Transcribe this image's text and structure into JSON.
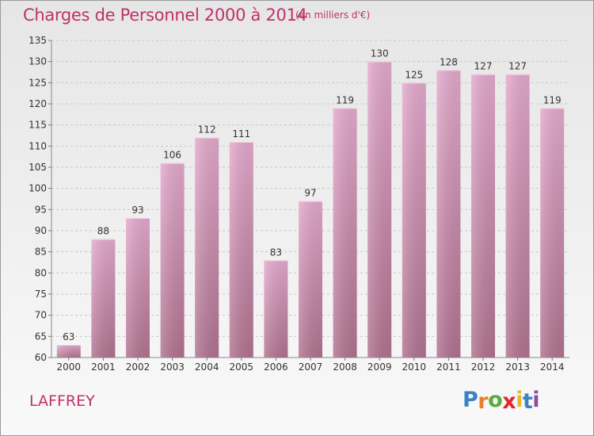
{
  "chart_data": {
    "type": "bar",
    "title": "Charges de Personnel 2000 à 2014",
    "subtitle": "(en milliers d'€)",
    "categories": [
      "2000",
      "2001",
      "2002",
      "2003",
      "2004",
      "2005",
      "2006",
      "2007",
      "2008",
      "2009",
      "2010",
      "2011",
      "2012",
      "2013",
      "2014"
    ],
    "values": [
      63,
      88,
      93,
      106,
      112,
      111,
      83,
      97,
      119,
      130,
      125,
      128,
      127,
      127,
      119
    ],
    "ylim": [
      60,
      135
    ],
    "yticks": [
      60,
      65,
      70,
      75,
      80,
      85,
      90,
      95,
      100,
      105,
      110,
      115,
      120,
      125,
      130,
      135
    ],
    "grid": "horizontal dashed",
    "bar_color_top": "#e3a9cc",
    "bar_color_bottom": "#b0728f"
  },
  "commune": "LAFFREY",
  "logo": {
    "letters": [
      "P",
      "r",
      "o",
      "x",
      "i",
      "t",
      "i"
    ],
    "colors": [
      "#3b82c4",
      "#e8812a",
      "#5aaa3c",
      "#e3262b",
      "#e8b72a",
      "#3b82c4",
      "#8a4fa0"
    ]
  }
}
